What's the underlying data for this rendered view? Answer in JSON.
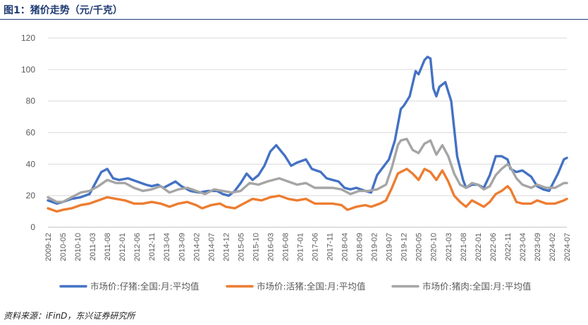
{
  "header": {
    "title": "图1：猪价走势（元/千克）"
  },
  "footer": {
    "source": "资料来源：iFinD，东兴证券研究所"
  },
  "chart_data": {
    "type": "line",
    "ylim": [
      0,
      120
    ],
    "yticks": [
      0,
      20,
      40,
      60,
      80,
      100,
      120
    ],
    "xticks": [
      "2009-12",
      "2010-05",
      "2010-10",
      "2011-03",
      "2011-08",
      "2012-01",
      "2012-06",
      "2012-11",
      "2013-04",
      "2013-09",
      "2014-02",
      "2014-07",
      "2014-12",
      "2015-05",
      "2015-10",
      "2016-03",
      "2016-08",
      "2017-01",
      "2017-06",
      "2017-11",
      "2018-04",
      "2018-09",
      "2019-02",
      "2019-07",
      "2019-12",
      "2020-05",
      "2020-10",
      "2021-03",
      "2021-08",
      "2022-01",
      "2022-06",
      "2022-11",
      "2023-04",
      "2023-09",
      "2024-02",
      "2024-07"
    ],
    "grid": "horizontal",
    "legend": "bottom",
    "series": [
      {
        "name": "市场价:仔猪:全国:月:平均值",
        "color": "#4472c4",
        "points": [
          [
            "2009-12",
            17
          ],
          [
            "2010-03",
            15
          ],
          [
            "2010-05",
            16
          ],
          [
            "2010-08",
            18
          ],
          [
            "2010-11",
            19
          ],
          [
            "2011-02",
            21
          ],
          [
            "2011-04",
            28
          ],
          [
            "2011-06",
            35
          ],
          [
            "2011-08",
            37
          ],
          [
            "2011-10",
            31
          ],
          [
            "2011-12",
            30
          ],
          [
            "2012-03",
            31
          ],
          [
            "2012-06",
            29
          ],
          [
            "2012-09",
            27
          ],
          [
            "2012-11",
            26
          ],
          [
            "2013-01",
            27
          ],
          [
            "2013-03",
            25
          ],
          [
            "2013-05",
            27
          ],
          [
            "2013-07",
            29
          ],
          [
            "2013-09",
            26
          ],
          [
            "2013-12",
            23
          ],
          [
            "2014-03",
            22
          ],
          [
            "2014-06",
            23
          ],
          [
            "2014-09",
            23
          ],
          [
            "2014-11",
            21
          ],
          [
            "2015-01",
            20
          ],
          [
            "2015-03",
            23
          ],
          [
            "2015-05",
            28
          ],
          [
            "2015-07",
            34
          ],
          [
            "2015-09",
            30
          ],
          [
            "2015-11",
            33
          ],
          [
            "2016-01",
            39
          ],
          [
            "2016-03",
            48
          ],
          [
            "2016-05",
            52
          ],
          [
            "2016-08",
            45
          ],
          [
            "2016-10",
            39
          ],
          [
            "2016-12",
            41
          ],
          [
            "2017-03",
            43
          ],
          [
            "2017-05",
            37
          ],
          [
            "2017-08",
            35
          ],
          [
            "2017-10",
            31
          ],
          [
            "2017-12",
            30
          ],
          [
            "2018-02",
            29
          ],
          [
            "2018-04",
            25
          ],
          [
            "2018-06",
            24
          ],
          [
            "2018-08",
            25
          ],
          [
            "2018-11",
            23
          ],
          [
            "2019-01",
            22
          ],
          [
            "2019-03",
            33
          ],
          [
            "2019-05",
            38
          ],
          [
            "2019-07",
            43
          ],
          [
            "2019-09",
            55
          ],
          [
            "2019-11",
            75
          ],
          [
            "2019-12",
            77
          ],
          [
            "2020-02",
            83
          ],
          [
            "2020-04",
            99
          ],
          [
            "2020-05",
            97
          ],
          [
            "2020-07",
            106
          ],
          [
            "2020-08",
            108
          ],
          [
            "2020-09",
            107
          ],
          [
            "2020-10",
            88
          ],
          [
            "2020-11",
            83
          ],
          [
            "2020-12",
            89
          ],
          [
            "2021-02",
            92
          ],
          [
            "2021-04",
            80
          ],
          [
            "2021-06",
            45
          ],
          [
            "2021-08",
            30
          ],
          [
            "2021-09",
            25
          ],
          [
            "2021-11",
            27
          ],
          [
            "2022-01",
            27
          ],
          [
            "2022-03",
            25
          ],
          [
            "2022-05",
            33
          ],
          [
            "2022-07",
            45
          ],
          [
            "2022-09",
            45
          ],
          [
            "2022-11",
            43
          ],
          [
            "2022-12",
            37
          ],
          [
            "2023-02",
            35
          ],
          [
            "2023-04",
            36
          ],
          [
            "2023-07",
            32
          ],
          [
            "2023-09",
            26
          ],
          [
            "2023-11",
            24
          ],
          [
            "2024-01",
            23
          ],
          [
            "2024-04",
            34
          ],
          [
            "2024-06",
            43
          ],
          [
            "2024-07",
            44
          ]
        ]
      },
      {
        "name": "市场价:活猪:全国:月:平均值",
        "color": "#ed7d31",
        "points": [
          [
            "2009-12",
            12
          ],
          [
            "2010-03",
            10
          ],
          [
            "2010-05",
            11
          ],
          [
            "2010-08",
            12
          ],
          [
            "2010-11",
            14
          ],
          [
            "2011-02",
            15
          ],
          [
            "2011-05",
            17
          ],
          [
            "2011-08",
            19
          ],
          [
            "2011-11",
            18
          ],
          [
            "2012-02",
            17
          ],
          [
            "2012-05",
            15
          ],
          [
            "2012-08",
            15
          ],
          [
            "2012-11",
            16
          ],
          [
            "2013-02",
            15
          ],
          [
            "2013-05",
            13
          ],
          [
            "2013-08",
            15
          ],
          [
            "2013-11",
            16
          ],
          [
            "2014-02",
            14
          ],
          [
            "2014-04",
            12
          ],
          [
            "2014-07",
            14
          ],
          [
            "2014-10",
            15
          ],
          [
            "2014-12",
            13
          ],
          [
            "2015-03",
            12
          ],
          [
            "2015-06",
            15
          ],
          [
            "2015-09",
            18
          ],
          [
            "2015-12",
            17
          ],
          [
            "2016-03",
            19
          ],
          [
            "2016-06",
            20
          ],
          [
            "2016-09",
            18
          ],
          [
            "2016-12",
            17
          ],
          [
            "2017-03",
            18
          ],
          [
            "2017-06",
            15
          ],
          [
            "2017-09",
            15
          ],
          [
            "2017-12",
            15
          ],
          [
            "2018-03",
            14
          ],
          [
            "2018-05",
            11
          ],
          [
            "2018-08",
            13
          ],
          [
            "2018-11",
            14
          ],
          [
            "2019-01",
            13
          ],
          [
            "2019-04",
            15
          ],
          [
            "2019-06",
            17
          ],
          [
            "2019-08",
            25
          ],
          [
            "2019-10",
            34
          ],
          [
            "2019-11",
            35
          ],
          [
            "2020-01",
            37
          ],
          [
            "2020-03",
            34
          ],
          [
            "2020-05",
            30
          ],
          [
            "2020-07",
            37
          ],
          [
            "2020-09",
            35
          ],
          [
            "2020-11",
            30
          ],
          [
            "2021-01",
            36
          ],
          [
            "2021-03",
            29
          ],
          [
            "2021-05",
            20
          ],
          [
            "2021-07",
            16
          ],
          [
            "2021-09",
            13
          ],
          [
            "2021-11",
            17
          ],
          [
            "2022-01",
            15
          ],
          [
            "2022-03",
            13
          ],
          [
            "2022-05",
            16
          ],
          [
            "2022-07",
            21
          ],
          [
            "2022-09",
            23
          ],
          [
            "2022-11",
            26
          ],
          [
            "2022-12",
            24
          ],
          [
            "2023-02",
            16
          ],
          [
            "2023-04",
            15
          ],
          [
            "2023-07",
            15
          ],
          [
            "2023-09",
            17
          ],
          [
            "2023-12",
            15
          ],
          [
            "2024-03",
            15
          ],
          [
            "2024-06",
            17
          ],
          [
            "2024-07",
            18
          ]
        ]
      },
      {
        "name": "市场价:猪肉:全国:月:平均值",
        "color": "#a5a5a5",
        "points": [
          [
            "2009-12",
            19
          ],
          [
            "2010-03",
            16
          ],
          [
            "2010-05",
            16
          ],
          [
            "2010-08",
            19
          ],
          [
            "2010-11",
            22
          ],
          [
            "2011-02",
            23
          ],
          [
            "2011-05",
            26
          ],
          [
            "2011-08",
            30
          ],
          [
            "2011-11",
            28
          ],
          [
            "2012-02",
            28
          ],
          [
            "2012-05",
            25
          ],
          [
            "2012-08",
            23
          ],
          [
            "2012-11",
            24
          ],
          [
            "2013-02",
            26
          ],
          [
            "2013-05",
            22
          ],
          [
            "2013-08",
            24
          ],
          [
            "2013-11",
            25
          ],
          [
            "2014-02",
            23
          ],
          [
            "2014-05",
            21
          ],
          [
            "2014-08",
            24
          ],
          [
            "2014-11",
            23
          ],
          [
            "2015-02",
            22
          ],
          [
            "2015-05",
            23
          ],
          [
            "2015-08",
            28
          ],
          [
            "2015-11",
            27
          ],
          [
            "2016-02",
            29
          ],
          [
            "2016-06",
            31
          ],
          [
            "2016-09",
            29
          ],
          [
            "2016-12",
            27
          ],
          [
            "2017-03",
            28
          ],
          [
            "2017-06",
            25
          ],
          [
            "2017-09",
            25
          ],
          [
            "2017-12",
            25
          ],
          [
            "2018-03",
            24
          ],
          [
            "2018-06",
            21
          ],
          [
            "2018-09",
            23
          ],
          [
            "2018-12",
            23
          ],
          [
            "2019-03",
            24
          ],
          [
            "2019-06",
            27
          ],
          [
            "2019-08",
            38
          ],
          [
            "2019-10",
            52
          ],
          [
            "2019-11",
            55
          ],
          [
            "2020-01",
            56
          ],
          [
            "2020-03",
            49
          ],
          [
            "2020-05",
            47
          ],
          [
            "2020-07",
            53
          ],
          [
            "2020-09",
            55
          ],
          [
            "2020-11",
            46
          ],
          [
            "2021-01",
            52
          ],
          [
            "2021-03",
            45
          ],
          [
            "2021-05",
            34
          ],
          [
            "2021-07",
            27
          ],
          [
            "2021-09",
            25
          ],
          [
            "2021-11",
            28
          ],
          [
            "2022-01",
            27
          ],
          [
            "2022-03",
            24
          ],
          [
            "2022-05",
            26
          ],
          [
            "2022-07",
            33
          ],
          [
            "2022-09",
            37
          ],
          [
            "2022-11",
            40
          ],
          [
            "2022-12",
            38
          ],
          [
            "2023-02",
            31
          ],
          [
            "2023-04",
            27
          ],
          [
            "2023-07",
            25
          ],
          [
            "2023-09",
            27
          ],
          [
            "2023-12",
            25
          ],
          [
            "2024-03",
            25
          ],
          [
            "2024-06",
            28
          ],
          [
            "2024-07",
            28
          ]
        ]
      }
    ]
  }
}
